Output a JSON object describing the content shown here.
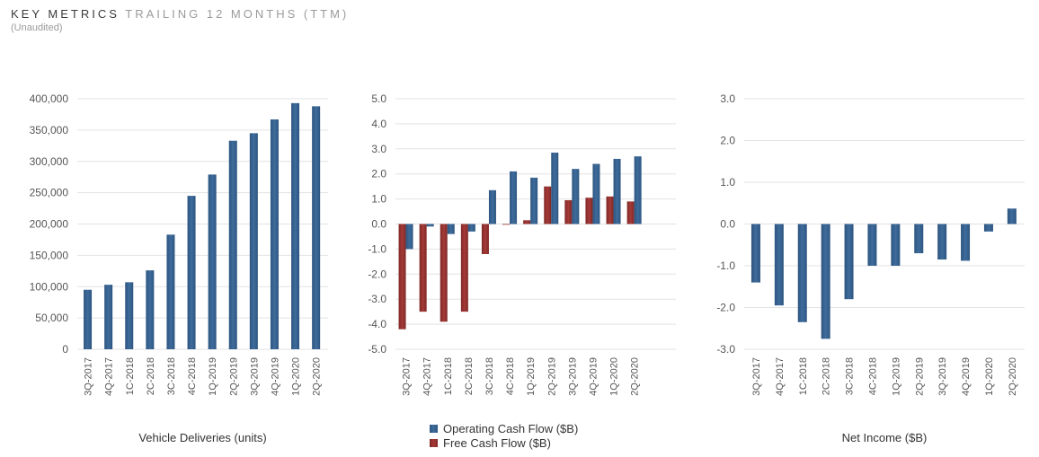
{
  "header": {
    "title_main": "KEY METRICS",
    "title_rest": "TRAILING 12 MONTHS (TTM)",
    "subtitle": "(Unaudited)"
  },
  "colors": {
    "blue": "#3F6C9C",
    "blue_dark": "#2D5580",
    "red": "#A53A38",
    "red_dark": "#7E2927",
    "grid": "#e3e3e3",
    "tick_text": "#555555"
  },
  "chart_data": [
    {
      "type": "bar",
      "title": "Vehicle Deliveries (units)",
      "categories": [
        "3Q-2017",
        "4Q-2017",
        "1C-2018",
        "2C-2018",
        "3C-2018",
        "4C-2018",
        "1Q-2019",
        "2Q-2019",
        "3Q-2019",
        "4Q-2019",
        "1Q-2020",
        "2Q-2020"
      ],
      "series": [
        {
          "name": "Vehicle Deliveries",
          "color": "blue",
          "values": [
            95000,
            103000,
            107000,
            126000,
            183000,
            245000,
            279000,
            333000,
            345000,
            367000,
            393000,
            388000
          ]
        }
      ],
      "ylim": [
        0,
        400000
      ],
      "yticks": [
        0,
        50000,
        100000,
        150000,
        200000,
        250000,
        300000,
        350000,
        400000
      ],
      "ytick_labels": [
        "0",
        "50,000",
        "100,000",
        "150,000",
        "200,000",
        "250,000",
        "300,000",
        "350,000",
        "400,000"
      ],
      "grid": true
    },
    {
      "type": "bar",
      "title": "",
      "categories": [
        "3Q-2017",
        "4Q-2017",
        "1C-2018",
        "2C-2018",
        "3C-2018",
        "4C-2018",
        "1Q-2019",
        "2Q-2019",
        "3Q-2019",
        "4Q-2019",
        "1Q-2020",
        "2Q-2020"
      ],
      "series": [
        {
          "name": "Free Cash Flow ($B)",
          "color": "red",
          "values": [
            -4.2,
            -3.5,
            -3.9,
            -3.5,
            -1.2,
            0.0,
            0.15,
            1.5,
            0.95,
            1.05,
            1.1,
            0.9
          ]
        },
        {
          "name": "Operating Cash Flow ($B)",
          "color": "blue",
          "values": [
            -1.0,
            -0.1,
            -0.4,
            -0.3,
            1.35,
            2.1,
            1.85,
            2.85,
            2.2,
            2.4,
            2.6,
            2.7
          ]
        }
      ],
      "legend": [
        {
          "label": "Operating Cash Flow ($B)",
          "color": "blue"
        },
        {
          "label": "Free Cash Flow ($B)",
          "color": "red"
        }
      ],
      "ylim": [
        -5,
        5
      ],
      "yticks": [
        5,
        4,
        3,
        2,
        1,
        0,
        -1,
        -2,
        -3,
        -4,
        -5
      ],
      "ytick_labels": [
        "5.0",
        "4.0",
        "3.0",
        "2.0",
        "1.0",
        "0.0",
        "-1.0",
        "-2.0",
        "-3.0",
        "-4.0",
        "-5.0"
      ],
      "grid": true,
      "legend_position": "bottom-center"
    },
    {
      "type": "bar",
      "title": "Net Income ($B)",
      "categories": [
        "3Q-2017",
        "4Q-2017",
        "1C-2018",
        "2C-2018",
        "3C-2018",
        "4C-2018",
        "1Q-2019",
        "2Q-2019",
        "3Q-2019",
        "4Q-2019",
        "1Q-2020",
        "2Q-2020"
      ],
      "series": [
        {
          "name": "Net Income",
          "color": "blue",
          "values": [
            -1.4,
            -1.95,
            -2.35,
            -2.75,
            -1.8,
            -1.0,
            -1.0,
            -0.7,
            -0.85,
            -0.88,
            -0.18,
            0.37
          ]
        }
      ],
      "ylim": [
        -3,
        3
      ],
      "yticks": [
        3,
        2,
        1,
        0,
        -1,
        -2,
        -3
      ],
      "ytick_labels": [
        "3.0",
        "2.0",
        "1.0",
        "0.0",
        "-1.0",
        "-2.0",
        "-3.0"
      ],
      "grid": true
    }
  ]
}
